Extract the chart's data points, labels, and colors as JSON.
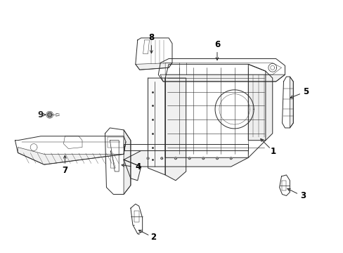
{
  "background_color": "#ffffff",
  "line_color": "#2a2a2a",
  "text_color": "#000000",
  "fig_width": 4.89,
  "fig_height": 3.6,
  "dpi": 100
}
